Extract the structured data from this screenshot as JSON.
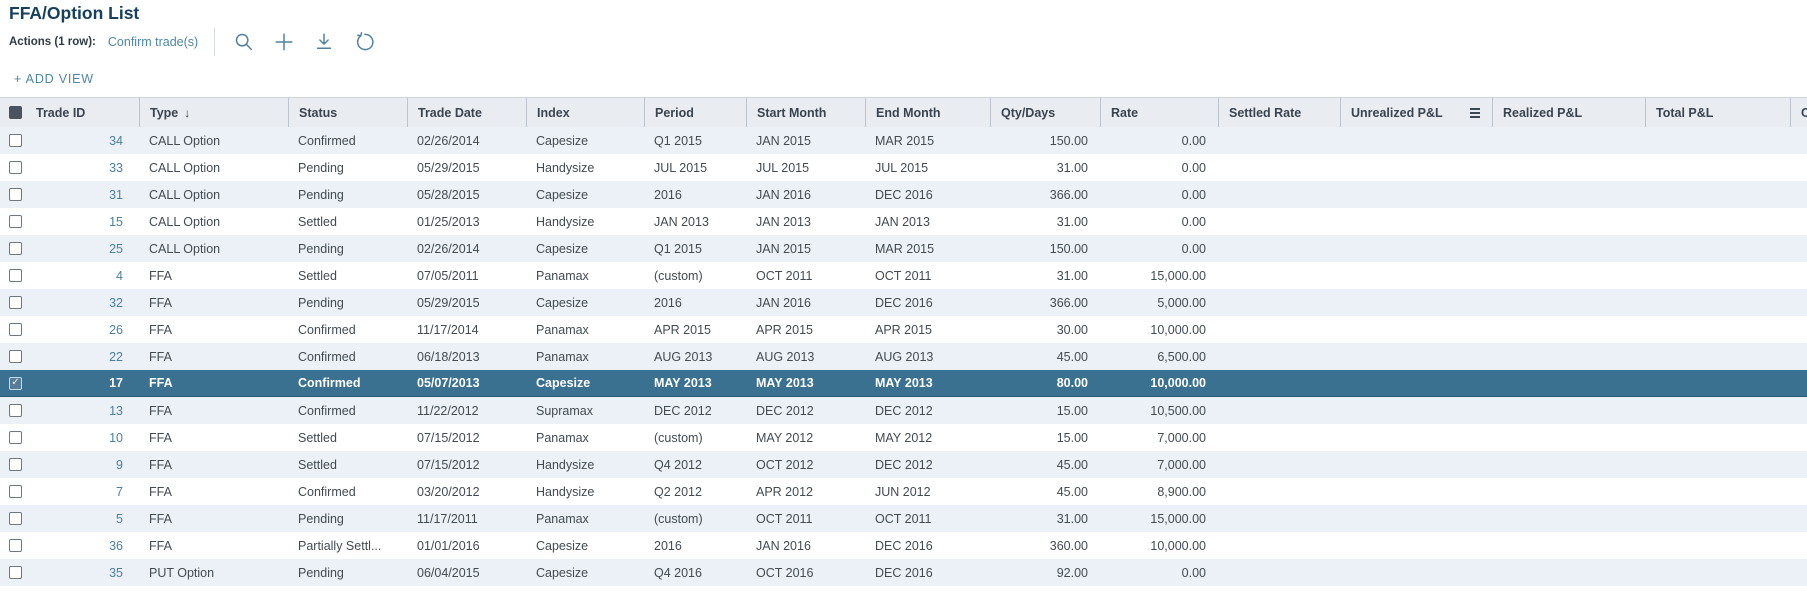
{
  "header": {
    "title": "FFA/Option List",
    "actions_label": "Actions (1 row):",
    "actions_link": "Confirm trade(s)",
    "add_view_label": "+ ADD VIEW"
  },
  "icons": {
    "sort_desc": "↓",
    "checkmark": "✓"
  },
  "colors": {
    "accent_link": "#4d7fa0",
    "selected_row": "#3a7191",
    "title_text": "#17405f",
    "header_bg": "#e9ecf0",
    "row_alt_bg": "#ebf1f6"
  },
  "table": {
    "header_checkbox_state": "partial",
    "sorted_column": "Type",
    "sort_direction": "desc",
    "columns": [
      {
        "label": "Trade ID"
      },
      {
        "label": "Type",
        "sorted": "desc"
      },
      {
        "label": "Status"
      },
      {
        "label": "Trade Date"
      },
      {
        "label": "Index"
      },
      {
        "label": "Period"
      },
      {
        "label": "Start Month"
      },
      {
        "label": "End Month"
      },
      {
        "label": "Qty/Days"
      },
      {
        "label": "Rate"
      },
      {
        "label": "Settled Rate"
      },
      {
        "label": "Unrealized P&L",
        "menu": true
      },
      {
        "label": "Realized P&L"
      },
      {
        "label": "Total P&L"
      },
      {
        "label": "C"
      }
    ],
    "rows": [
      {
        "id": "34",
        "type": "CALL Option",
        "status": "Confirmed",
        "date": "02/26/2014",
        "index": "Capesize",
        "period": "Q1 2015",
        "start": "JAN 2015",
        "end": "MAR 2015",
        "qty": "150.00",
        "rate": "0.00",
        "settled": "",
        "unrealized": "",
        "realized": "",
        "total": "",
        "selected": false,
        "checked": false
      },
      {
        "id": "33",
        "type": "CALL Option",
        "status": "Pending",
        "date": "05/29/2015",
        "index": "Handysize",
        "period": "JUL 2015",
        "start": "JUL 2015",
        "end": "JUL 2015",
        "qty": "31.00",
        "rate": "0.00",
        "settled": "",
        "unrealized": "",
        "realized": "",
        "total": "",
        "selected": false,
        "checked": false
      },
      {
        "id": "31",
        "type": "CALL Option",
        "status": "Pending",
        "date": "05/28/2015",
        "index": "Capesize",
        "period": "2016",
        "start": "JAN 2016",
        "end": "DEC 2016",
        "qty": "366.00",
        "rate": "0.00",
        "settled": "",
        "unrealized": "",
        "realized": "",
        "total": "",
        "selected": false,
        "checked": false
      },
      {
        "id": "15",
        "type": "CALL Option",
        "status": "Settled",
        "date": "01/25/2013",
        "index": "Handysize",
        "period": "JAN 2013",
        "start": "JAN 2013",
        "end": "JAN 2013",
        "qty": "31.00",
        "rate": "0.00",
        "settled": "",
        "unrealized": "",
        "realized": "",
        "total": "",
        "selected": false,
        "checked": false
      },
      {
        "id": "25",
        "type": "CALL Option",
        "status": "Pending",
        "date": "02/26/2014",
        "index": "Capesize",
        "period": "Q1 2015",
        "start": "JAN 2015",
        "end": "MAR 2015",
        "qty": "150.00",
        "rate": "0.00",
        "settled": "",
        "unrealized": "",
        "realized": "",
        "total": "",
        "selected": false,
        "checked": false
      },
      {
        "id": "4",
        "type": "FFA",
        "status": "Settled",
        "date": "07/05/2011",
        "index": "Panamax",
        "period": "(custom)",
        "start": "OCT 2011",
        "end": "OCT 2011",
        "qty": "31.00",
        "rate": "15,000.00",
        "settled": "",
        "unrealized": "",
        "realized": "",
        "total": "",
        "selected": false,
        "checked": false
      },
      {
        "id": "32",
        "type": "FFA",
        "status": "Pending",
        "date": "05/29/2015",
        "index": "Capesize",
        "period": "2016",
        "start": "JAN 2016",
        "end": "DEC 2016",
        "qty": "366.00",
        "rate": "5,000.00",
        "settled": "",
        "unrealized": "",
        "realized": "",
        "total": "",
        "selected": false,
        "checked": false
      },
      {
        "id": "26",
        "type": "FFA",
        "status": "Confirmed",
        "date": "11/17/2014",
        "index": "Panamax",
        "period": "APR 2015",
        "start": "APR 2015",
        "end": "APR 2015",
        "qty": "30.00",
        "rate": "10,000.00",
        "settled": "",
        "unrealized": "",
        "realized": "",
        "total": "",
        "selected": false,
        "checked": false
      },
      {
        "id": "22",
        "type": "FFA",
        "status": "Confirmed",
        "date": "06/18/2013",
        "index": "Panamax",
        "period": "AUG 2013",
        "start": "AUG 2013",
        "end": "AUG 2013",
        "qty": "45.00",
        "rate": "6,500.00",
        "settled": "",
        "unrealized": "",
        "realized": "",
        "total": "",
        "selected": false,
        "checked": false
      },
      {
        "id": "17",
        "type": "FFA",
        "status": "Confirmed",
        "date": "05/07/2013",
        "index": "Capesize",
        "period": "MAY 2013",
        "start": "MAY 2013",
        "end": "MAY 2013",
        "qty": "80.00",
        "rate": "10,000.00",
        "settled": "",
        "unrealized": "",
        "realized": "",
        "total": "",
        "selected": true,
        "checked": true
      },
      {
        "id": "13",
        "type": "FFA",
        "status": "Confirmed",
        "date": "11/22/2012",
        "index": "Supramax",
        "period": "DEC 2012",
        "start": "DEC 2012",
        "end": "DEC 2012",
        "qty": "15.00",
        "rate": "10,500.00",
        "settled": "",
        "unrealized": "",
        "realized": "",
        "total": "",
        "selected": false,
        "checked": false
      },
      {
        "id": "10",
        "type": "FFA",
        "status": "Settled",
        "date": "07/15/2012",
        "index": "Panamax",
        "period": "(custom)",
        "start": "MAY 2012",
        "end": "MAY 2012",
        "qty": "15.00",
        "rate": "7,000.00",
        "settled": "",
        "unrealized": "",
        "realized": "",
        "total": "",
        "selected": false,
        "checked": false
      },
      {
        "id": "9",
        "type": "FFA",
        "status": "Settled",
        "date": "07/15/2012",
        "index": "Handysize",
        "period": "Q4 2012",
        "start": "OCT 2012",
        "end": "DEC 2012",
        "qty": "45.00",
        "rate": "7,000.00",
        "settled": "",
        "unrealized": "",
        "realized": "",
        "total": "",
        "selected": false,
        "checked": false
      },
      {
        "id": "7",
        "type": "FFA",
        "status": "Confirmed",
        "date": "03/20/2012",
        "index": "Handysize",
        "period": "Q2 2012",
        "start": "APR 2012",
        "end": "JUN 2012",
        "qty": "45.00",
        "rate": "8,900.00",
        "settled": "",
        "unrealized": "",
        "realized": "",
        "total": "",
        "selected": false,
        "checked": false
      },
      {
        "id": "5",
        "type": "FFA",
        "status": "Pending",
        "date": "11/17/2011",
        "index": "Panamax",
        "period": "(custom)",
        "start": "OCT 2011",
        "end": "OCT 2011",
        "qty": "31.00",
        "rate": "15,000.00",
        "settled": "",
        "unrealized": "",
        "realized": "",
        "total": "",
        "selected": false,
        "checked": false
      },
      {
        "id": "36",
        "type": "FFA",
        "status": "Partially Settl...",
        "date": "01/01/2016",
        "index": "Capesize",
        "period": "2016",
        "start": "JAN 2016",
        "end": "DEC 2016",
        "qty": "360.00",
        "rate": "10,000.00",
        "settled": "",
        "unrealized": "",
        "realized": "",
        "total": "",
        "selected": false,
        "checked": false
      },
      {
        "id": "35",
        "type": "PUT Option",
        "status": "Pending",
        "date": "06/04/2015",
        "index": "Capesize",
        "period": "Q4 2016",
        "start": "OCT 2016",
        "end": "DEC 2016",
        "qty": "92.00",
        "rate": "0.00",
        "settled": "",
        "unrealized": "",
        "realized": "",
        "total": "",
        "selected": false,
        "checked": false
      }
    ]
  }
}
